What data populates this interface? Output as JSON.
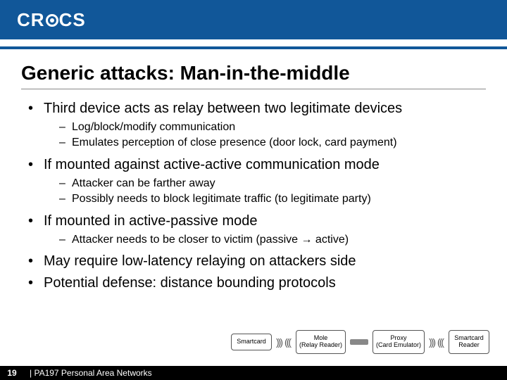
{
  "header": {
    "logo_prefix": "CR",
    "logo_suffix": "CS"
  },
  "title": "Generic attacks: Man-in-the-middle",
  "bullets": [
    {
      "text": "Third device acts as relay between two legitimate devices",
      "sub": [
        "Log/block/modify communication",
        "Emulates perception of close presence (door lock, card payment)"
      ]
    },
    {
      "text": "If mounted against active-active communication mode",
      "sub": [
        "Attacker can be farther away",
        "Possibly needs to block legitimate traffic (to legitimate party)"
      ]
    },
    {
      "text": "If mounted in active-passive mode",
      "sub": [
        "Attacker needs to be closer to victim (passive → active)"
      ]
    },
    {
      "text": "May require low-latency relaying on attackers side",
      "sub": []
    },
    {
      "text": "Potential defense: distance bounding protocols",
      "sub": []
    }
  ],
  "diagram": {
    "box1": "Smartcard",
    "box2": "Mole\n(Relay Reader)",
    "box3": "Proxy\n(Card Emulator)",
    "box4": "Smartcard\nReader"
  },
  "footer": {
    "page": "19",
    "text": "| PA197 Personal Area Networks"
  }
}
